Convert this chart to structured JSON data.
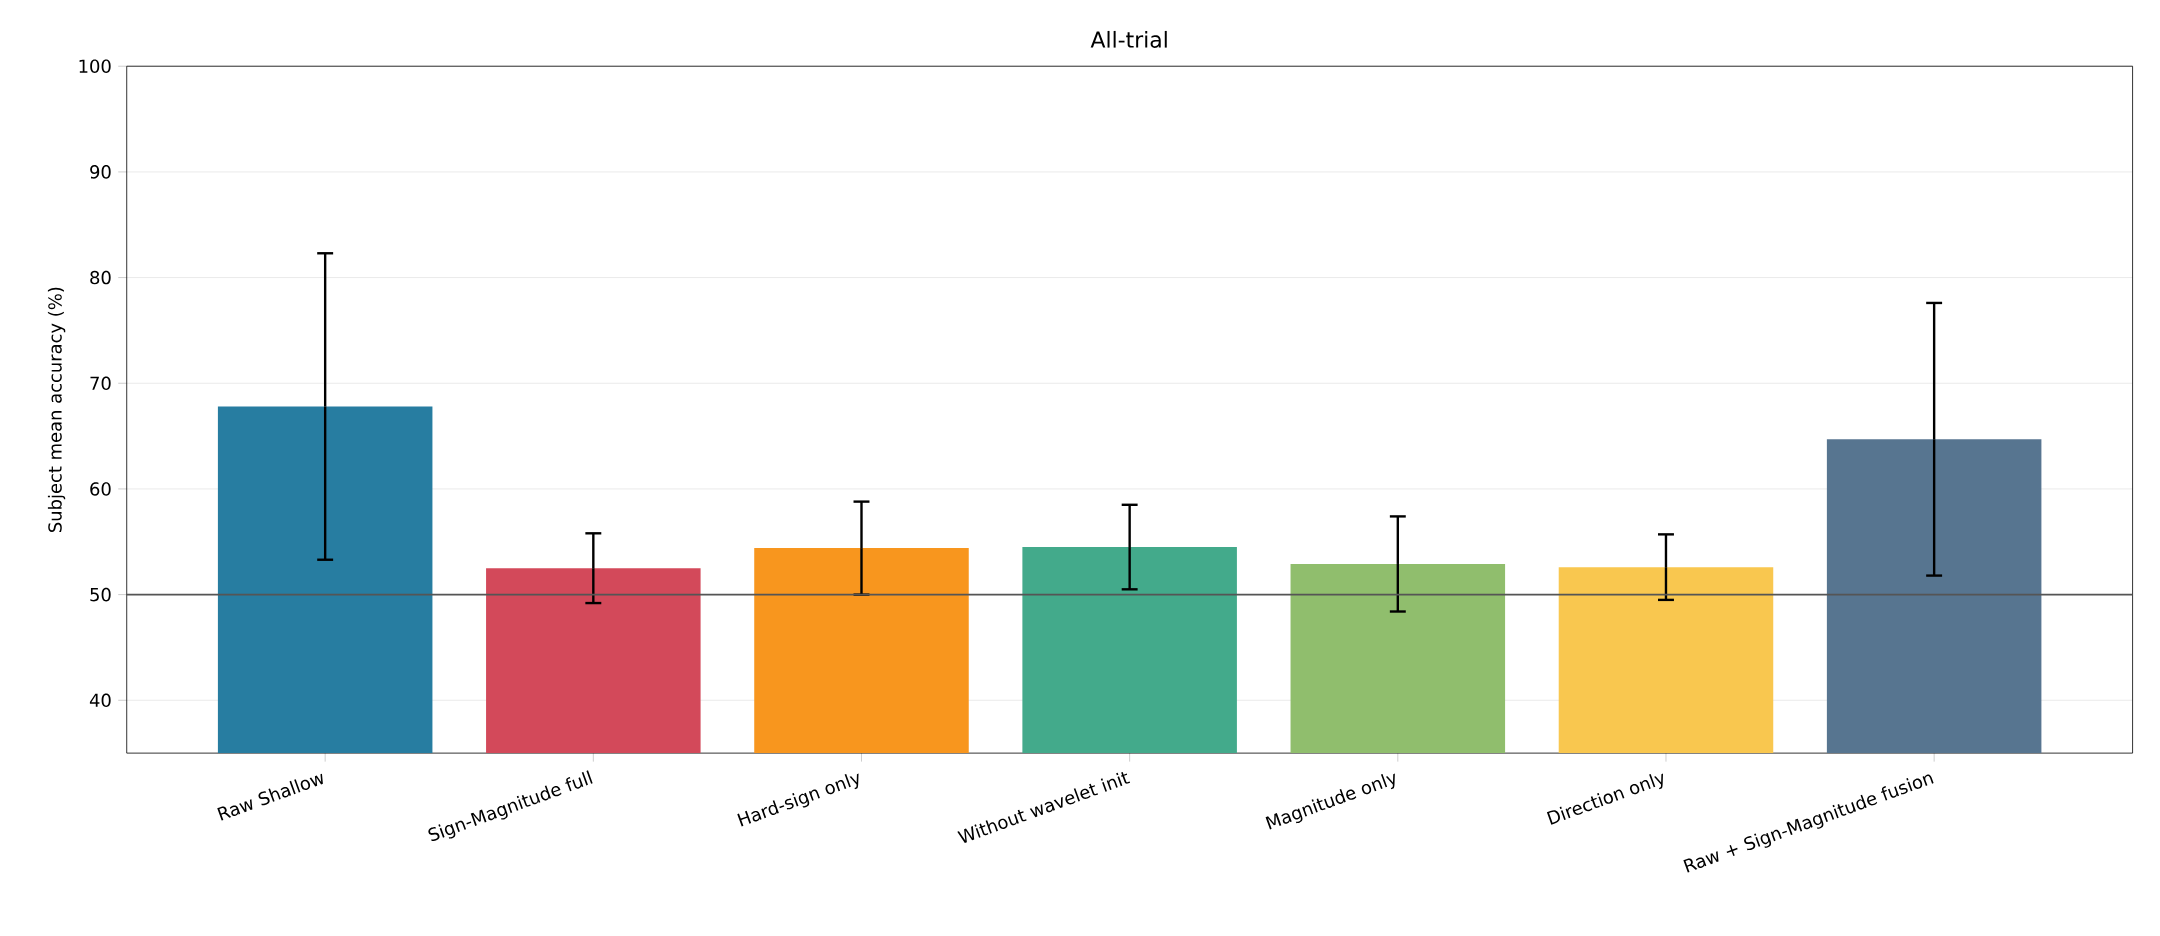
{
  "chart_data": {
    "type": "bar",
    "title": "All-trial",
    "ylabel": "Subject mean accuracy (%)",
    "categories": [
      "Raw Shallow",
      "Sign-Magnitude full",
      "Hard-sign only",
      "Without wavelet init",
      "Magnitude only",
      "Direction only",
      "Raw + Sign-Magnitude fusion"
    ],
    "values": [
      67.8,
      52.5,
      54.4,
      54.5,
      52.9,
      52.6,
      64.7
    ],
    "errors": [
      14.5,
      3.3,
      4.4,
      4.0,
      4.5,
      3.1,
      12.9
    ],
    "colors": [
      "#277da1",
      "#d3495a",
      "#f8961e",
      "#43aa8b",
      "#90be6d",
      "#f9c74f",
      "#577590"
    ],
    "ylim": [
      35,
      100
    ],
    "yticks": [
      40,
      50,
      60,
      70,
      80,
      90,
      100
    ],
    "grid": "y",
    "ref_lines": [
      {
        "axis": "y",
        "value": 50,
        "color": "#555555"
      }
    ]
  }
}
